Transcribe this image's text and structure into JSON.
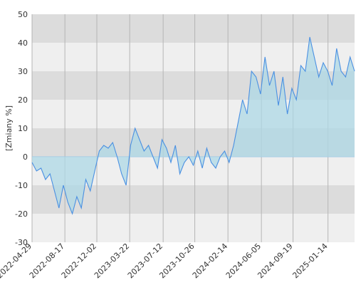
{
  "chart_data": {
    "type": "area",
    "title": "",
    "xlabel": "",
    "ylabel": "[Zmiany %]",
    "ylim": [
      -30,
      50
    ],
    "grid": true,
    "legend": "none",
    "y_ticks": [
      50,
      40,
      30,
      20,
      10,
      0,
      -10,
      -20,
      -30
    ],
    "x_tick_labels": [
      "2022-04-29",
      "2022-08-17",
      "2022-12-02",
      "2023-03-22",
      "2023-07-12",
      "2023-10-26",
      "2024-02-14",
      "2024-06-05",
      "2024-09-19",
      "2025-01-14"
    ],
    "colors": {
      "line": "#4a90e2",
      "fill": "#add8e6",
      "band_dark": "#dcdcdc",
      "band_light": "#efefef"
    },
    "series": [
      {
        "x": [
          "2022-04-29",
          "2022-05-14",
          "2022-05-29",
          "2022-06-13",
          "2022-06-28",
          "2022-07-13",
          "2022-07-28",
          "2022-08-12",
          "2022-08-27",
          "2022-09-11",
          "2022-09-26",
          "2022-10-11",
          "2022-10-26",
          "2022-11-10",
          "2022-11-25",
          "2022-12-10",
          "2022-12-25",
          "2023-01-09",
          "2023-01-24",
          "2023-02-08",
          "2023-02-23",
          "2023-03-10",
          "2023-03-25",
          "2023-04-09",
          "2023-04-24",
          "2023-05-09",
          "2023-05-24",
          "2023-06-08",
          "2023-06-23",
          "2023-07-08",
          "2023-07-23",
          "2023-08-07",
          "2023-08-22",
          "2023-09-06",
          "2023-09-21",
          "2023-10-06",
          "2023-10-21",
          "2023-11-05",
          "2023-11-20",
          "2023-12-05",
          "2023-12-20",
          "2024-01-04",
          "2024-01-19",
          "2024-02-03",
          "2024-02-18",
          "2024-03-04",
          "2024-03-19",
          "2024-04-03",
          "2024-04-18",
          "2024-05-03",
          "2024-05-18",
          "2024-06-02",
          "2024-06-17",
          "2024-07-02",
          "2024-07-17",
          "2024-08-01",
          "2024-08-16",
          "2024-08-31",
          "2024-09-15",
          "2024-09-30",
          "2024-10-15",
          "2024-10-30",
          "2024-11-14",
          "2024-11-29",
          "2024-12-14",
          "2024-12-29",
          "2025-01-13",
          "2025-01-28",
          "2025-02-12",
          "2025-02-27",
          "2025-03-14",
          "2025-03-29",
          "2025-04-13"
        ],
        "values": [
          -2,
          -5,
          -4,
          -8,
          -6,
          -12,
          -18,
          -10,
          -16,
          -20,
          -14,
          -18,
          -8,
          -12,
          -5,
          2,
          4,
          3,
          5,
          0,
          -6,
          -10,
          4,
          10,
          6,
          2,
          4,
          0,
          -4,
          6,
          3,
          -2,
          4,
          -6,
          -2,
          0,
          -3,
          2,
          -4,
          3,
          -2,
          -4,
          0,
          2,
          -2,
          4,
          12,
          20,
          15,
          30,
          28,
          22,
          35,
          25,
          30,
          18,
          28,
          15,
          24,
          20,
          32,
          30,
          42,
          35,
          28,
          33,
          30,
          25,
          38,
          30,
          28,
          35,
          30
        ]
      }
    ]
  }
}
